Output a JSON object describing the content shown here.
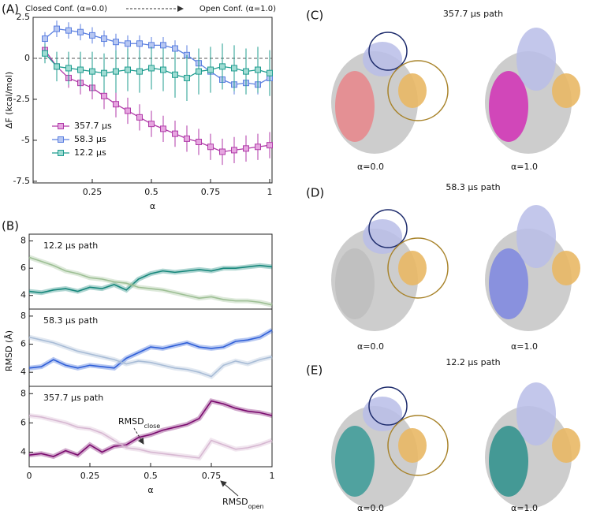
{
  "chart_data": [
    {
      "type": "line",
      "panel_label": "(A)",
      "annotation_left": "Closed Conf. (α=0.0)",
      "annotation_right": "Open Conf. (α=1.0)",
      "x_label": "α",
      "y_label": "ΔF (kcal/mol)",
      "x": [
        0.05,
        0.1,
        0.15,
        0.2,
        0.25,
        0.3,
        0.35,
        0.4,
        0.45,
        0.5,
        0.55,
        0.6,
        0.65,
        0.7,
        0.75,
        0.8,
        0.85,
        0.9,
        0.95,
        1.0
      ],
      "series": [
        {
          "name": "357.7 µs",
          "color": "#b03aa8",
          "fill": "#e6a6e0",
          "values": [
            0.5,
            -0.5,
            -1.2,
            -1.5,
            -1.8,
            -2.3,
            -2.8,
            -3.2,
            -3.6,
            -4.0,
            -4.3,
            -4.6,
            -4.9,
            -5.1,
            -5.4,
            -5.7,
            -5.6,
            -5.5,
            -5.4,
            -5.3
          ],
          "errors": [
            0.4,
            0.5,
            0.6,
            0.7,
            0.7,
            0.8,
            0.8,
            0.8,
            0.8,
            0.8,
            0.8,
            0.8,
            0.8,
            0.8,
            0.8,
            0.8,
            0.8,
            0.8,
            0.8,
            0.8
          ]
        },
        {
          "name": "58.3 µs",
          "color": "#5b7fe0",
          "fill": "#b7c7f2",
          "values": [
            1.2,
            1.8,
            1.7,
            1.6,
            1.4,
            1.2,
            1.0,
            0.9,
            0.9,
            0.8,
            0.8,
            0.6,
            0.2,
            -0.3,
            -0.8,
            -1.3,
            -1.6,
            -1.5,
            -1.6,
            -1.2
          ],
          "errors": [
            0.4,
            0.5,
            0.5,
            0.5,
            0.5,
            0.5,
            0.5,
            0.5,
            0.5,
            0.5,
            0.5,
            0.5,
            0.6,
            0.6,
            0.6,
            0.6,
            0.6,
            0.6,
            0.6,
            0.6
          ]
        },
        {
          "name": "12.2 µs",
          "color": "#1f9c8f",
          "fill": "#9fdcd3",
          "values": [
            0.3,
            -0.5,
            -0.6,
            -0.7,
            -0.8,
            -0.9,
            -0.8,
            -0.7,
            -0.8,
            -0.6,
            -0.7,
            -1.0,
            -1.2,
            -0.8,
            -0.7,
            -0.5,
            -0.6,
            -0.8,
            -0.7,
            -0.9
          ],
          "errors": [
            0.6,
            0.9,
            1.0,
            1.1,
            1.2,
            1.2,
            1.3,
            1.3,
            1.3,
            1.3,
            1.3,
            1.4,
            1.4,
            1.4,
            1.4,
            1.4,
            1.4,
            1.4,
            1.4,
            1.4
          ]
        }
      ],
      "xlim": [
        0,
        1.01
      ],
      "ylim": [
        -7.6,
        2.5
      ],
      "xticks": [
        0.25,
        0.5,
        0.75,
        1
      ],
      "yticks": [
        2.5,
        0,
        -2.5,
        -5,
        -7.5
      ],
      "hline": 0,
      "markers": true,
      "legend": "lower left"
    },
    {
      "type": "line",
      "panel_label": "(B)",
      "title": "12.2 µs path",
      "x": [
        0,
        0.05,
        0.1,
        0.15,
        0.2,
        0.25,
        0.3,
        0.35,
        0.4,
        0.45,
        0.5,
        0.55,
        0.6,
        0.65,
        0.7,
        0.75,
        0.8,
        0.85,
        0.9,
        0.95,
        1.0
      ],
      "series": [
        {
          "color": "#16877b",
          "values": [
            4.3,
            4.2,
            4.4,
            4.5,
            4.3,
            4.6,
            4.5,
            4.8,
            4.4,
            5.2,
            5.6,
            5.8,
            5.7,
            5.8,
            5.9,
            5.8,
            6.0,
            6.0,
            6.1,
            6.2,
            6.1
          ]
        },
        {
          "color": "#9dbf94",
          "values": [
            6.8,
            6.5,
            6.2,
            5.8,
            5.6,
            5.3,
            5.2,
            5.0,
            4.9,
            4.6,
            4.5,
            4.4,
            4.2,
            4.0,
            3.8,
            3.9,
            3.7,
            3.6,
            3.6,
            3.5,
            3.3
          ]
        }
      ],
      "xlim": [
        0,
        1
      ],
      "ylim": [
        3,
        8.5
      ],
      "yticks": [
        4,
        6,
        8
      ]
    },
    {
      "type": "line",
      "title": "58.3 µs path",
      "y_label": "RMSD (Å)",
      "x": [
        0,
        0.05,
        0.1,
        0.15,
        0.2,
        0.25,
        0.3,
        0.35,
        0.4,
        0.45,
        0.5,
        0.55,
        0.6,
        0.65,
        0.7,
        0.75,
        0.8,
        0.85,
        0.9,
        0.95,
        1.0
      ],
      "series": [
        {
          "color": "#2f5fd8",
          "values": [
            4.3,
            4.4,
            4.9,
            4.5,
            4.3,
            4.5,
            4.4,
            4.3,
            5.0,
            5.4,
            5.8,
            5.7,
            5.9,
            6.1,
            5.8,
            5.7,
            5.8,
            6.2,
            6.3,
            6.5,
            7.0
          ]
        },
        {
          "color": "#a8bcd6",
          "values": [
            6.5,
            6.3,
            6.1,
            5.8,
            5.5,
            5.3,
            5.1,
            4.9,
            4.6,
            4.8,
            4.7,
            4.5,
            4.3,
            4.2,
            4.0,
            3.7,
            4.5,
            4.8,
            4.6,
            4.9,
            5.1
          ]
        }
      ],
      "xlim": [
        0,
        1
      ],
      "ylim": [
        3,
        8.5
      ],
      "yticks": [
        4,
        6,
        8
      ]
    },
    {
      "type": "line",
      "title": "357.7 µs path",
      "x_label": "α",
      "x": [
        0,
        0.05,
        0.1,
        0.15,
        0.2,
        0.25,
        0.3,
        0.35,
        0.4,
        0.45,
        0.5,
        0.55,
        0.6,
        0.65,
        0.7,
        0.75,
        0.8,
        0.85,
        0.9,
        0.95,
        1.0
      ],
      "series": [
        {
          "color": "#7a0a6e",
          "values": [
            3.8,
            3.9,
            3.7,
            4.1,
            3.8,
            4.5,
            4.0,
            4.4,
            4.5,
            5.0,
            5.2,
            5.5,
            5.7,
            5.9,
            6.3,
            7.5,
            7.3,
            7.0,
            6.8,
            6.7,
            6.5
          ]
        },
        {
          "color": "#d7b8d2",
          "values": [
            6.5,
            6.4,
            6.2,
            6.0,
            5.7,
            5.6,
            5.3,
            4.8,
            4.3,
            4.2,
            4.0,
            3.9,
            3.8,
            3.7,
            3.6,
            4.8,
            4.5,
            4.2,
            4.3,
            4.5,
            4.8
          ]
        }
      ],
      "annotations": [
        {
          "text": "RMSD",
          "sub": "close"
        },
        {
          "text": "RMSD",
          "sub": "open"
        }
      ],
      "xlim": [
        0,
        1
      ],
      "ylim": [
        3,
        8.5
      ],
      "xticks": [
        0,
        0.25,
        0.5,
        0.75,
        1
      ],
      "yticks": [
        4,
        6,
        8
      ]
    }
  ],
  "structures": [
    {
      "label": "(C)",
      "title": "357.7 µs path",
      "states": [
        "α=0.0",
        "α=1.0"
      ],
      "color": "#e8858a",
      "color_open": "#d12fb5"
    },
    {
      "label": "(D)",
      "title": "58.3 µs path",
      "states": [
        "α=0.0",
        "α=1.0"
      ],
      "color": "#bdbdbd",
      "color_open": "#7d86e0"
    },
    {
      "label": "(E)",
      "title": "12.2 µs path",
      "states": [
        "α=0.0",
        "α=1.0"
      ],
      "color": "#3a9a96",
      "color_open": "#2c8f8b"
    }
  ]
}
